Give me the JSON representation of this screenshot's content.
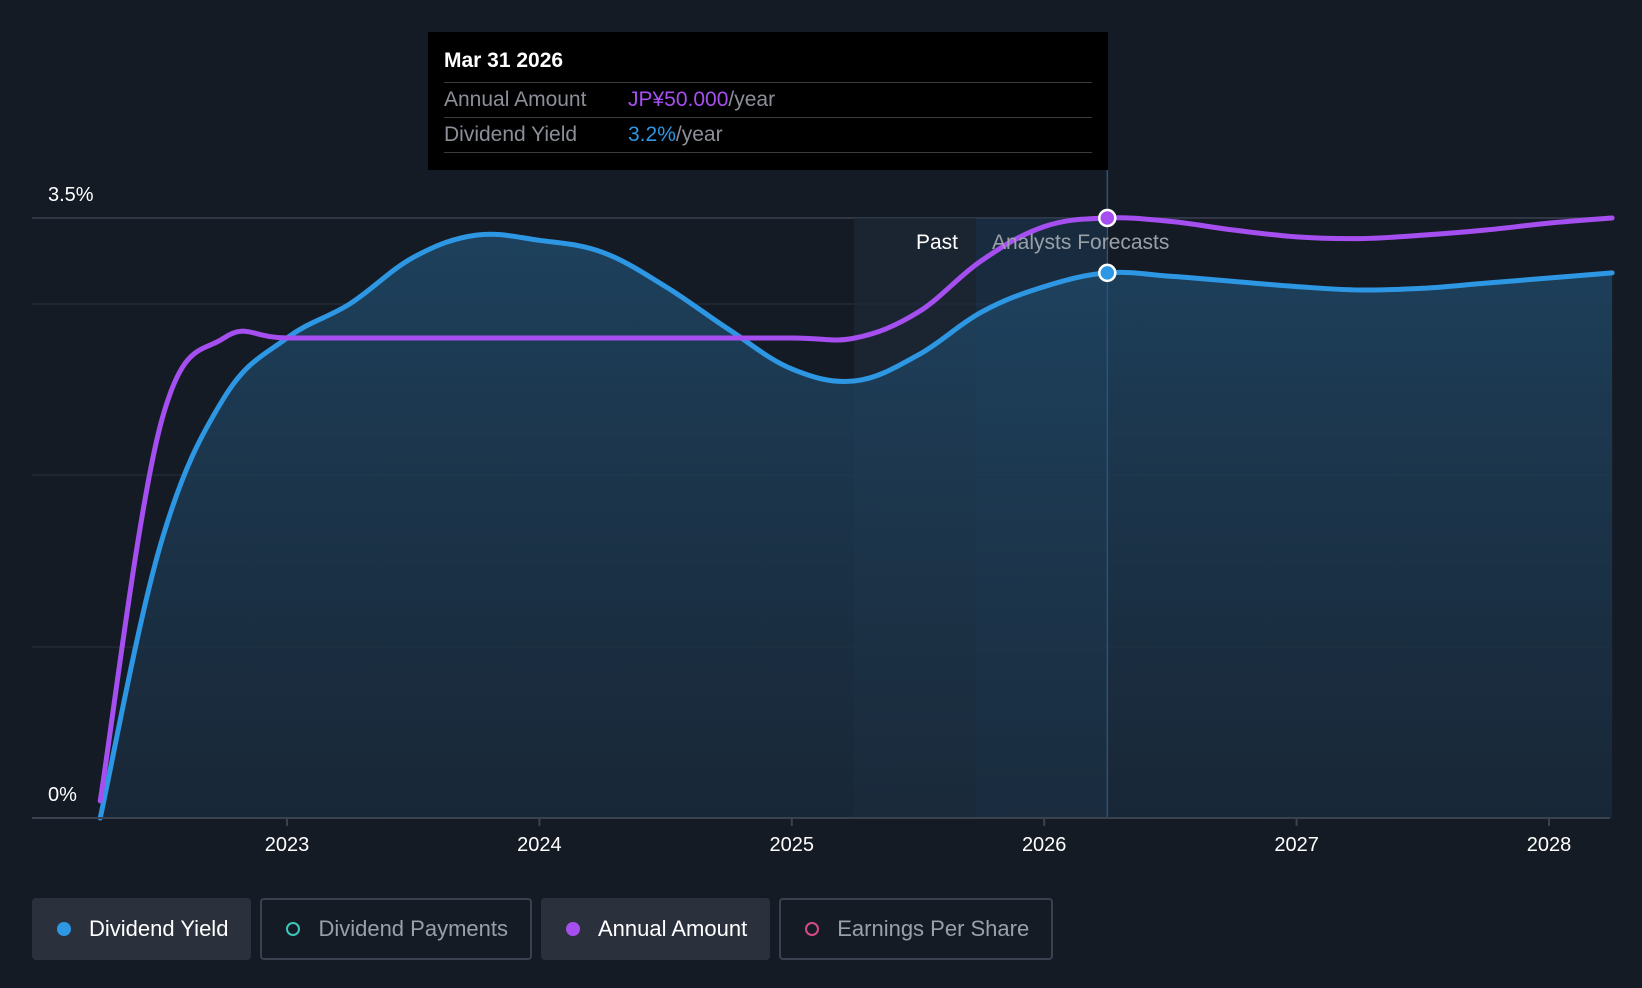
{
  "chart_data": {
    "type": "line",
    "title": "",
    "x_axis": {
      "ticks": [
        "2023",
        "2024",
        "2025",
        "2026",
        "2027",
        "2028"
      ],
      "range": [
        2022.25,
        2028.25
      ]
    },
    "y_axis": {
      "ticks": [
        "0%",
        "3.5%"
      ],
      "range": [
        0,
        3.5
      ]
    },
    "regions": {
      "past_label": "Past",
      "forecast_label": "Analysts Forecasts"
    },
    "series": [
      {
        "name": "Dividend Yield",
        "color": "#2d97e4",
        "points": [
          [
            2022.26,
            0.0
          ],
          [
            2022.5,
            1.6
          ],
          [
            2022.75,
            2.45
          ],
          [
            2023.0,
            2.8
          ],
          [
            2023.25,
            3.0
          ],
          [
            2023.5,
            3.27
          ],
          [
            2023.75,
            3.4
          ],
          [
            2024.0,
            3.37
          ],
          [
            2024.25,
            3.3
          ],
          [
            2024.5,
            3.1
          ],
          [
            2024.75,
            2.85
          ],
          [
            2025.0,
            2.62
          ],
          [
            2025.25,
            2.55
          ],
          [
            2025.5,
            2.7
          ],
          [
            2025.75,
            2.95
          ],
          [
            2026.0,
            3.1
          ],
          [
            2026.25,
            3.18
          ],
          [
            2026.5,
            3.16
          ],
          [
            2026.75,
            3.13
          ],
          [
            2027.0,
            3.1
          ],
          [
            2027.25,
            3.08
          ],
          [
            2027.5,
            3.09
          ],
          [
            2027.75,
            3.12
          ],
          [
            2028.0,
            3.15
          ],
          [
            2028.25,
            3.18
          ]
        ]
      },
      {
        "name": "Annual Amount",
        "color": "#a64ff0",
        "points": [
          [
            2022.26,
            0.1
          ],
          [
            2022.5,
            2.3
          ],
          [
            2022.75,
            2.8
          ],
          [
            2023.0,
            2.8
          ],
          [
            2023.5,
            2.8
          ],
          [
            2024.0,
            2.8
          ],
          [
            2024.5,
            2.8
          ],
          [
            2025.0,
            2.8
          ],
          [
            2025.25,
            2.8
          ],
          [
            2025.5,
            2.95
          ],
          [
            2025.75,
            3.25
          ],
          [
            2026.0,
            3.45
          ],
          [
            2026.25,
            3.5
          ],
          [
            2026.5,
            3.48
          ],
          [
            2026.75,
            3.43
          ],
          [
            2027.0,
            3.39
          ],
          [
            2027.25,
            3.38
          ],
          [
            2027.5,
            3.4
          ],
          [
            2027.75,
            3.43
          ],
          [
            2028.0,
            3.47
          ],
          [
            2028.25,
            3.5
          ]
        ]
      }
    ],
    "highlight_point": {
      "x": 2026.25,
      "dividend_yield": 3.2,
      "annual_amount": 50.0
    }
  },
  "tooltip": {
    "date": "Mar 31 2026",
    "annual_amount_label": "Annual Amount",
    "annual_amount_value": "JP¥50.000",
    "dividend_yield_label": "Dividend Yield",
    "dividend_yield_value": "3.2%",
    "unit": "/year"
  },
  "legend": [
    {
      "label": "Dividend Yield",
      "color": "#2d97e4",
      "active": true
    },
    {
      "label": "Dividend Payments",
      "color": "#3cc7bd",
      "active": false
    },
    {
      "label": "Annual Amount",
      "color": "#a64ff0",
      "active": true
    },
    {
      "label": "Earnings Per Share",
      "color": "#d64a86",
      "active": false
    }
  ]
}
